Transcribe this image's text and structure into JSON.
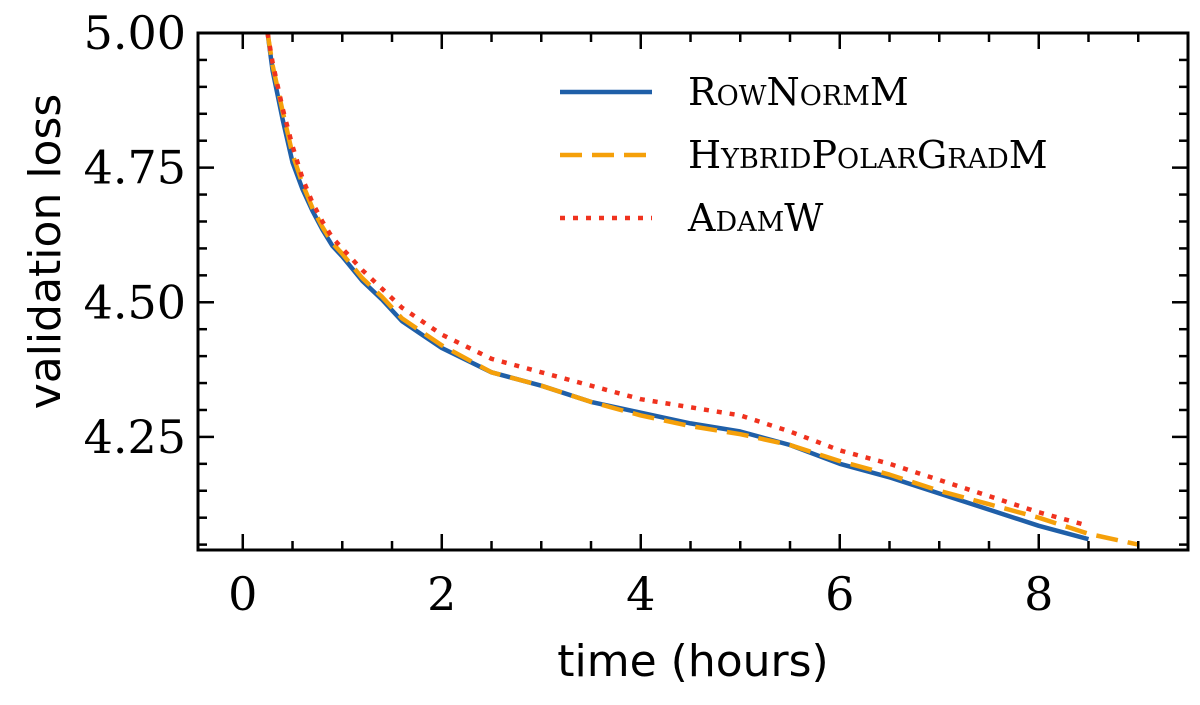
{
  "chart_data": {
    "type": "line",
    "xlabel": "time (hours)",
    "ylabel": "validation loss",
    "xlim": [
      -0.45,
      9.5
    ],
    "ylim": [
      4.04,
      5.0
    ],
    "xticks": [
      0,
      2,
      4,
      6,
      8
    ],
    "xtick_labels": [
      "0",
      "2",
      "4",
      "6",
      "8"
    ],
    "yticks": [
      4.25,
      4.5,
      4.75,
      5.0
    ],
    "ytick_labels": [
      "4.25",
      "4.50",
      "4.75",
      "5.00"
    ],
    "grid": false,
    "legend_position": "top-right",
    "series": [
      {
        "name": "RowNormM",
        "color": "#1f5fa8",
        "style": "solid",
        "x": [
          0.25,
          0.3,
          0.4,
          0.5,
          0.6,
          0.7,
          0.8,
          0.9,
          1.0,
          1.2,
          1.4,
          1.6,
          1.8,
          2.0,
          2.5,
          3.0,
          3.5,
          4.0,
          4.5,
          5.0,
          5.5,
          6.0,
          6.5,
          7.0,
          7.5,
          8.0,
          8.5
        ],
        "y": [
          5.0,
          4.93,
          4.84,
          4.76,
          4.71,
          4.67,
          4.635,
          4.605,
          4.585,
          4.54,
          4.505,
          4.465,
          4.44,
          4.415,
          4.37,
          4.345,
          4.315,
          4.295,
          4.275,
          4.26,
          4.235,
          4.2,
          4.175,
          4.145,
          4.115,
          4.085,
          4.06
        ]
      },
      {
        "name": "HybridPolarGradM",
        "color": "#f5a00a",
        "style": "dashed",
        "x": [
          0.25,
          0.3,
          0.4,
          0.5,
          0.6,
          0.7,
          0.8,
          0.9,
          1.0,
          1.2,
          1.4,
          1.6,
          1.8,
          2.0,
          2.5,
          3.0,
          3.5,
          4.0,
          4.5,
          5.0,
          5.5,
          6.0,
          6.5,
          7.0,
          7.5,
          8.0,
          8.5,
          9.0
        ],
        "y": [
          5.0,
          4.94,
          4.855,
          4.775,
          4.72,
          4.675,
          4.64,
          4.61,
          4.59,
          4.545,
          4.51,
          4.47,
          4.445,
          4.42,
          4.37,
          4.345,
          4.315,
          4.29,
          4.27,
          4.255,
          4.235,
          4.205,
          4.18,
          4.15,
          4.125,
          4.1,
          4.07,
          4.05
        ]
      },
      {
        "name": "AdamW",
        "color": "#f0321e",
        "style": "dotted",
        "x": [
          0.25,
          0.3,
          0.4,
          0.5,
          0.6,
          0.7,
          0.8,
          0.9,
          1.0,
          1.2,
          1.4,
          1.6,
          1.8,
          2.0,
          2.5,
          3.0,
          3.5,
          4.0,
          4.5,
          5.0,
          5.5,
          6.0,
          6.5,
          7.0,
          7.5,
          8.0,
          8.5
        ],
        "y": [
          5.0,
          4.945,
          4.86,
          4.79,
          4.73,
          4.685,
          4.65,
          4.62,
          4.6,
          4.56,
          4.525,
          4.49,
          4.465,
          4.44,
          4.395,
          4.37,
          4.345,
          4.32,
          4.305,
          4.29,
          4.26,
          4.225,
          4.2,
          4.17,
          4.14,
          4.11,
          4.085
        ]
      }
    ]
  }
}
